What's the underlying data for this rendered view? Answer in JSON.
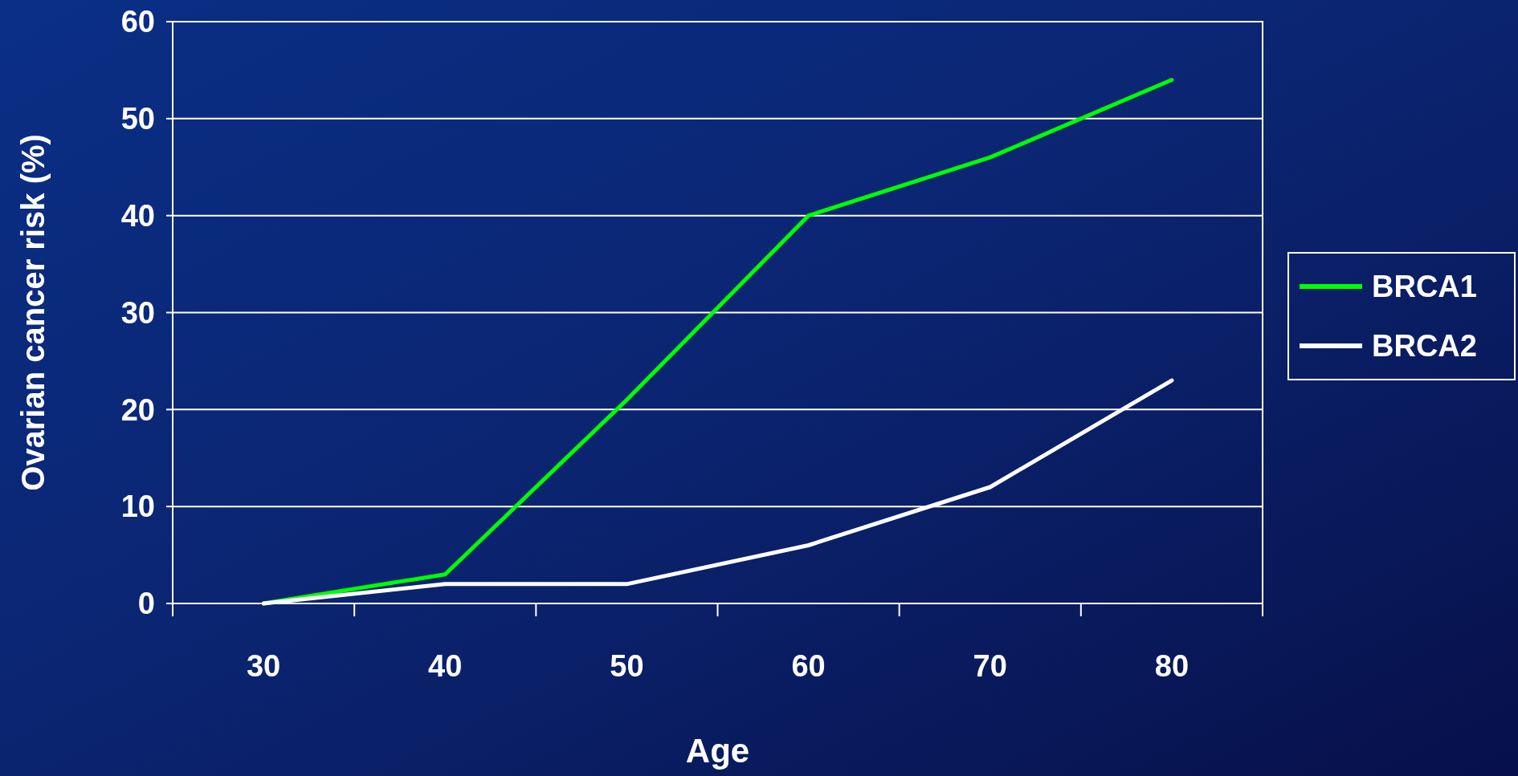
{
  "chart_data": {
    "type": "line",
    "xlabel": "Age",
    "ylabel": "Ovarian cancer risk (%)",
    "categories": [
      "30",
      "40",
      "50",
      "60",
      "70",
      "80"
    ],
    "series": [
      {
        "name": "BRCA1",
        "color": "#00ff00",
        "values": [
          0,
          3,
          21,
          40,
          46,
          54
        ]
      },
      {
        "name": "BRCA2",
        "color": "#ffffff",
        "values": [
          0,
          2,
          2,
          6,
          12,
          23
        ]
      }
    ],
    "ylim": [
      0,
      60
    ],
    "yticks": [
      0,
      10,
      20,
      30,
      40,
      50,
      60
    ],
    "grid": "y",
    "legend": "right",
    "marker": "none",
    "line_style": "solid"
  }
}
